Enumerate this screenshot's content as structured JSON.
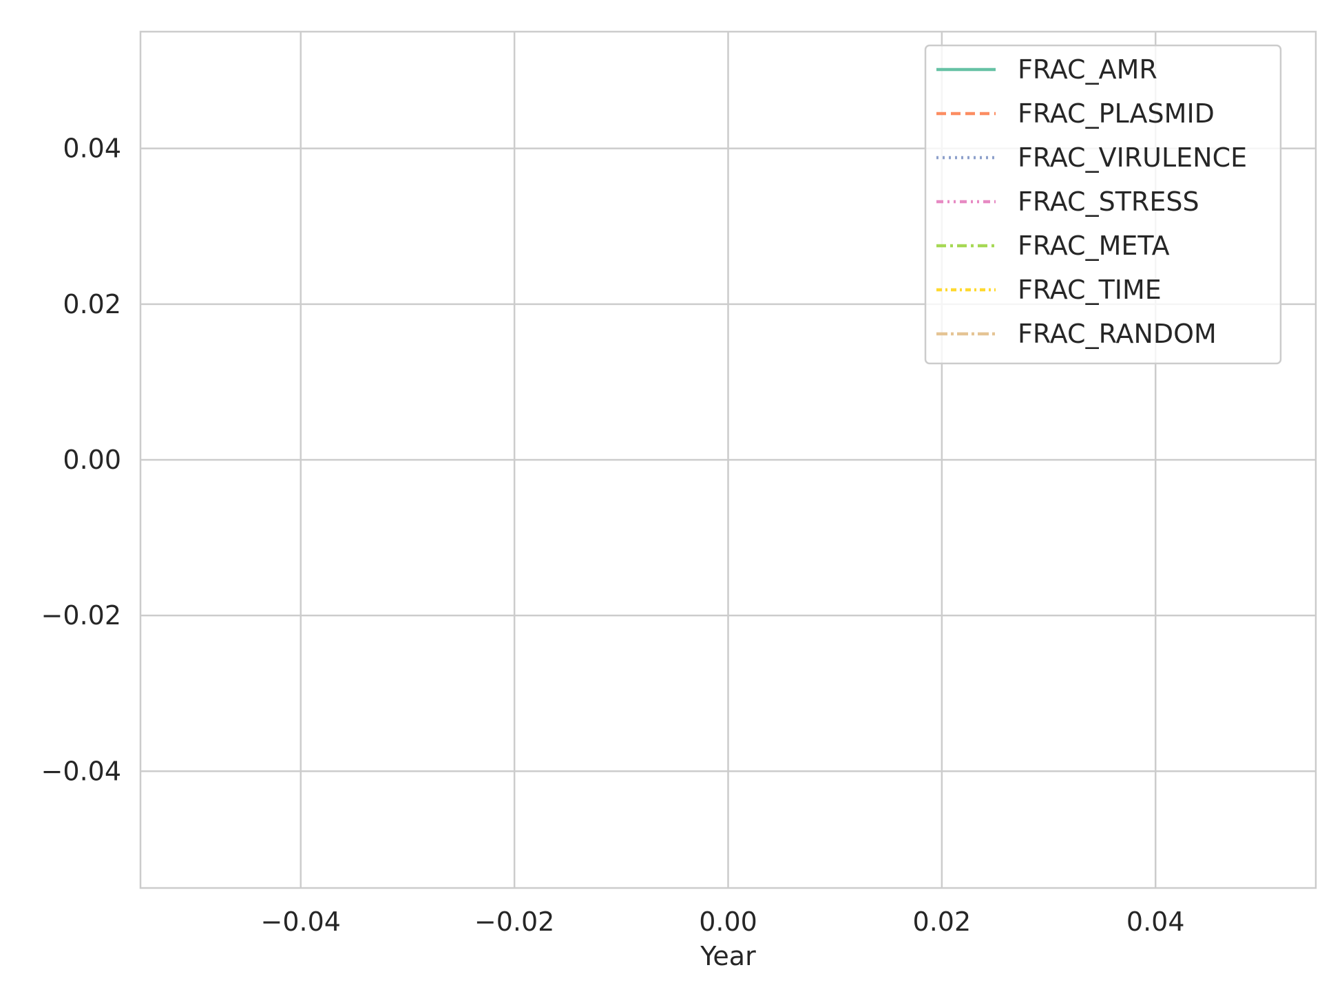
{
  "chart_data": {
    "type": "line",
    "title": "",
    "xlabel": "Year",
    "ylabel": "",
    "xlim": [
      -0.055,
      0.055
    ],
    "ylim": [
      -0.055,
      0.055
    ],
    "x_ticks": [
      -0.04,
      -0.02,
      0.0,
      0.02,
      0.04
    ],
    "y_ticks": [
      -0.04,
      -0.02,
      0.0,
      0.02,
      0.04
    ],
    "x_tick_labels": [
      "−0.04",
      "−0.02",
      "0.00",
      "0.02",
      "0.04"
    ],
    "y_tick_labels": [
      "−0.04",
      "−0.02",
      "0.00",
      "0.02",
      "0.04"
    ],
    "grid": true,
    "legend_position": "top-right",
    "series": [
      {
        "name": "FRAC_AMR",
        "color": "#66c2a5",
        "dash": "solid",
        "x": [],
        "y": []
      },
      {
        "name": "FRAC_PLASMID",
        "color": "#fc8d62",
        "dash": "dashed",
        "x": [],
        "y": []
      },
      {
        "name": "FRAC_VIRULENCE",
        "color": "#8da0cb",
        "dash": "dotted",
        "x": [],
        "y": []
      },
      {
        "name": "FRAC_STRESS",
        "color": "#e78ac3",
        "dash": "dash-dot-dot",
        "x": [],
        "y": []
      },
      {
        "name": "FRAC_META",
        "color": "#a6d854",
        "dash": "dash-dot",
        "x": [],
        "y": []
      },
      {
        "name": "FRAC_TIME",
        "color": "#ffd92f",
        "dash": "dense-dash-dot",
        "x": [],
        "y": []
      },
      {
        "name": "FRAC_RANDOM",
        "color": "#e5c494",
        "dash": "long-dash-dot",
        "x": [],
        "y": []
      }
    ]
  }
}
